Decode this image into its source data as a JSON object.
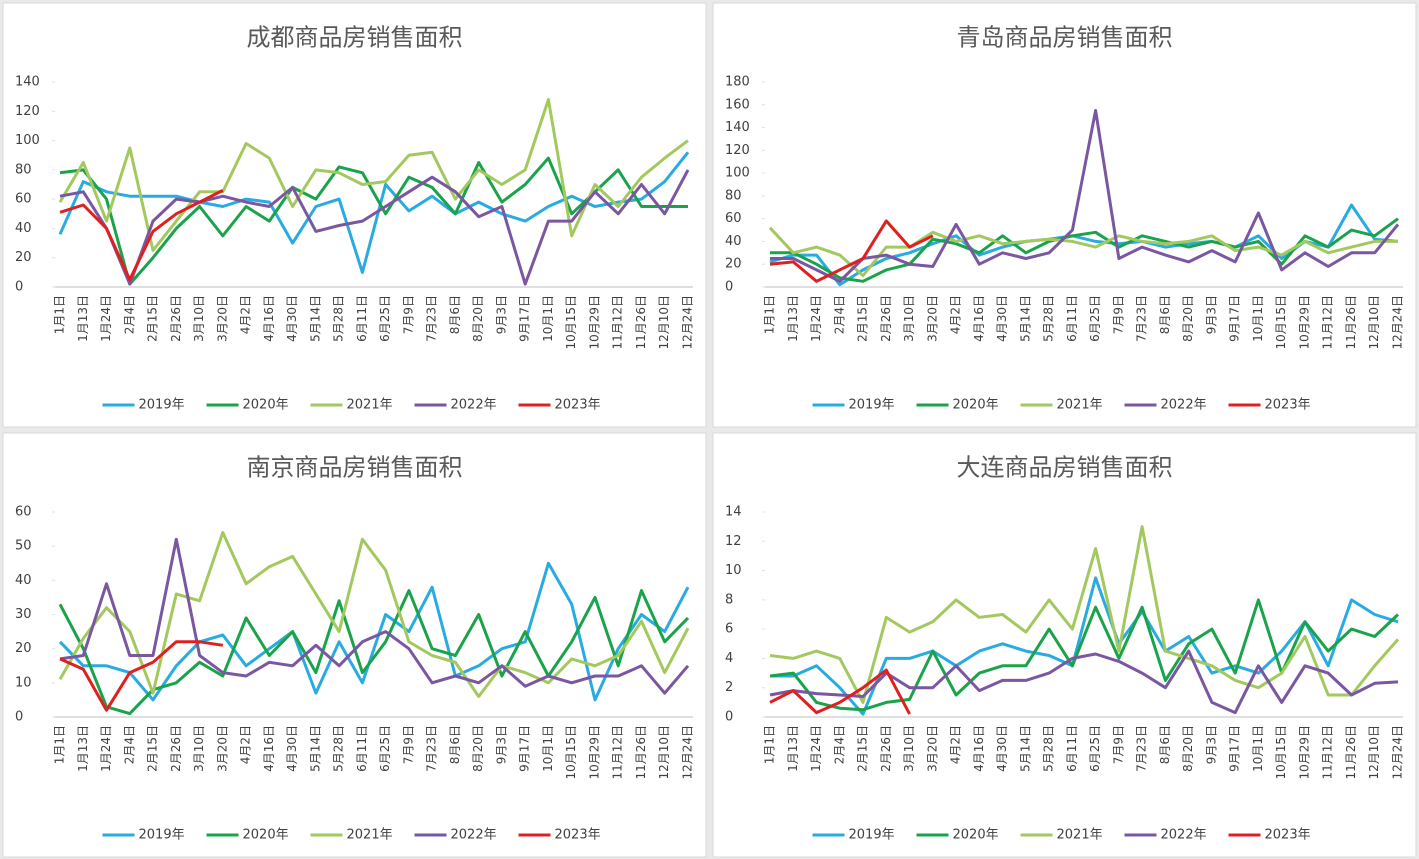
{
  "chart_data": [
    {
      "type": "line",
      "title": "成都商品房销售面积",
      "categories": [
        "1月1日",
        "1月13日",
        "1月24日",
        "2月4日",
        "2月15日",
        "2月26日",
        "3月10日",
        "3月20日",
        "4月2日",
        "4月16日",
        "4月30日",
        "5月14日",
        "5月28日",
        "6月11日",
        "6月25日",
        "7月9日",
        "7月23日",
        "8月6日",
        "8月20日",
        "9月3日",
        "9月17日",
        "10月1日",
        "10月15日",
        "10月29日",
        "11月12日",
        "11月26日",
        "12月10日",
        "12月24日"
      ],
      "ylim": [
        0,
        140
      ],
      "yticks": [
        0,
        20,
        40,
        60,
        80,
        100,
        120,
        140
      ],
      "grid": false,
      "legend": "bottom",
      "series": [
        {
          "name": "2019年",
          "color": "#29abe2",
          "values": [
            36,
            72,
            65,
            62,
            62,
            62,
            58,
            55,
            60,
            58,
            30,
            55,
            60,
            10,
            70,
            52,
            62,
            50,
            58,
            50,
            45,
            55,
            62,
            55,
            58,
            60,
            72,
            92
          ]
        },
        {
          "name": "2020年",
          "color": "#1aa34a",
          "values": [
            78,
            80,
            60,
            2,
            20,
            40,
            55,
            35,
            55,
            45,
            68,
            60,
            82,
            78,
            50,
            75,
            68,
            50,
            85,
            58,
            70,
            88,
            50,
            65,
            80,
            55,
            55,
            55
          ]
        },
        {
          "name": "2021年",
          "color": "#a3c95e",
          "values": [
            58,
            85,
            45,
            95,
            25,
            45,
            65,
            65,
            98,
            88,
            55,
            80,
            78,
            70,
            72,
            90,
            92,
            60,
            80,
            70,
            80,
            128,
            35,
            70,
            55,
            75,
            88,
            100
          ]
        },
        {
          "name": "2022年",
          "color": "#7a57a0",
          "values": [
            62,
            65,
            40,
            2,
            45,
            60,
            58,
            62,
            58,
            55,
            68,
            38,
            42,
            45,
            55,
            65,
            75,
            65,
            48,
            55,
            2,
            45,
            45,
            65,
            50,
            70,
            50,
            80
          ]
        },
        {
          "name": "2023年",
          "color": "#e02020",
          "values": [
            51,
            56,
            40,
            5,
            38,
            50,
            58,
            66,
            null,
            null,
            null,
            null,
            null,
            null,
            null,
            null,
            null,
            null,
            null,
            null,
            null,
            null,
            null,
            null,
            null,
            null,
            null,
            null
          ]
        }
      ]
    },
    {
      "type": "line",
      "title": "青岛商品房销售面积",
      "categories": [
        "1月1日",
        "1月13日",
        "1月24日",
        "2月4日",
        "2月15日",
        "2月26日",
        "3月10日",
        "3月20日",
        "4月2日",
        "4月16日",
        "4月30日",
        "5月14日",
        "5月28日",
        "6月11日",
        "6月25日",
        "7月9日",
        "7月23日",
        "8月6日",
        "8月20日",
        "9月3日",
        "9月17日",
        "10月1日",
        "10月15日",
        "10月29日",
        "11月12日",
        "11月26日",
        "12月10日",
        "12月24日"
      ],
      "ylim": [
        0,
        180
      ],
      "yticks": [
        0,
        20,
        40,
        60,
        80,
        100,
        120,
        140,
        160,
        180
      ],
      "grid": false,
      "legend": "bottom",
      "series": [
        {
          "name": "2019年",
          "color": "#29abe2",
          "values": [
            22,
            28,
            28,
            2,
            15,
            25,
            30,
            38,
            45,
            28,
            35,
            40,
            42,
            45,
            40,
            38,
            40,
            35,
            38,
            40,
            35,
            45,
            25,
            40,
            35,
            72,
            42,
            40
          ]
        },
        {
          "name": "2020年",
          "color": "#1aa34a",
          "values": [
            30,
            30,
            20,
            8,
            5,
            15,
            20,
            42,
            38,
            30,
            45,
            30,
            40,
            45,
            48,
            35,
            45,
            40,
            35,
            40,
            35,
            40,
            20,
            45,
            35,
            50,
            45,
            60
          ]
        },
        {
          "name": "2021年",
          "color": "#a3c95e",
          "values": [
            52,
            30,
            35,
            28,
            10,
            35,
            35,
            48,
            40,
            45,
            38,
            40,
            42,
            40,
            35,
            45,
            40,
            38,
            40,
            45,
            32,
            35,
            28,
            40,
            30,
            35,
            40,
            40
          ]
        },
        {
          "name": "2022年",
          "color": "#7a57a0",
          "values": [
            25,
            25,
            15,
            5,
            25,
            28,
            20,
            18,
            55,
            20,
            30,
            25,
            30,
            50,
            155,
            25,
            35,
            28,
            22,
            32,
            22,
            65,
            15,
            30,
            18,
            30,
            30,
            55
          ]
        },
        {
          "name": "2023年",
          "color": "#e02020",
          "values": [
            20,
            22,
            5,
            15,
            25,
            58,
            35,
            45,
            null,
            null,
            null,
            null,
            null,
            null,
            null,
            null,
            null,
            null,
            null,
            null,
            null,
            null,
            null,
            null,
            null,
            null,
            null,
            null
          ]
        }
      ]
    },
    {
      "type": "line",
      "title": "南京商品房销售面积",
      "categories": [
        "1月1日",
        "1月13日",
        "1月24日",
        "2月4日",
        "2月15日",
        "2月26日",
        "3月10日",
        "3月20日",
        "4月2日",
        "4月16日",
        "4月30日",
        "5月14日",
        "5月28日",
        "6月11日",
        "6月25日",
        "7月9日",
        "7月23日",
        "8月6日",
        "8月20日",
        "9月3日",
        "9月17日",
        "10月1日",
        "10月15日",
        "10月29日",
        "11月12日",
        "11月26日",
        "12月10日",
        "12月24日"
      ],
      "ylim": [
        0,
        60
      ],
      "yticks": [
        0,
        10,
        20,
        30,
        40,
        50,
        60
      ],
      "grid": false,
      "legend": "bottom",
      "series": [
        {
          "name": "2019年",
          "color": "#29abe2",
          "values": [
            22,
            15,
            15,
            13,
            5,
            15,
            22,
            24,
            15,
            20,
            25,
            7,
            22,
            10,
            30,
            25,
            38,
            12,
            15,
            20,
            22,
            45,
            33,
            5,
            20,
            30,
            25,
            38
          ]
        },
        {
          "name": "2020年",
          "color": "#1aa34a",
          "values": [
            33,
            20,
            3,
            1,
            8,
            10,
            16,
            12,
            29,
            18,
            25,
            13,
            34,
            13,
            22,
            37,
            20,
            18,
            30,
            12,
            25,
            12,
            22,
            35,
            15,
            37,
            22,
            29
          ]
        },
        {
          "name": "2021年",
          "color": "#a3c95e",
          "values": [
            11,
            23,
            32,
            25,
            7,
            36,
            34,
            54,
            39,
            44,
            47,
            36,
            25,
            52,
            43,
            22,
            18,
            16,
            6,
            15,
            13,
            10,
            17,
            15,
            18,
            28,
            13,
            26
          ]
        },
        {
          "name": "2022年",
          "color": "#7a57a0",
          "values": [
            17,
            18,
            39,
            18,
            18,
            52,
            18,
            13,
            12,
            16,
            15,
            21,
            15,
            22,
            25,
            20,
            10,
            12,
            10,
            15,
            9,
            12,
            10,
            12,
            12,
            15,
            7,
            15
          ]
        },
        {
          "name": "2023年",
          "color": "#e02020",
          "values": [
            17,
            14,
            2,
            13,
            16,
            22,
            22,
            21,
            null,
            null,
            null,
            null,
            null,
            null,
            null,
            null,
            null,
            null,
            null,
            null,
            null,
            null,
            null,
            null,
            null,
            null,
            null,
            null
          ]
        }
      ]
    },
    {
      "type": "line",
      "title": "大连商品房销售面积",
      "categories": [
        "1月1日",
        "1月13日",
        "1月24日",
        "2月4日",
        "2月15日",
        "2月26日",
        "3月10日",
        "3月20日",
        "4月2日",
        "4月16日",
        "4月30日",
        "5月14日",
        "5月28日",
        "6月11日",
        "6月25日",
        "7月9日",
        "7月23日",
        "8月6日",
        "8月20日",
        "9月3日",
        "9月17日",
        "10月1日",
        "10月15日",
        "10月29日",
        "11月12日",
        "11月26日",
        "12月10日",
        "12月24日"
      ],
      "ylim": [
        0,
        14
      ],
      "yticks": [
        0,
        2,
        4,
        6,
        8,
        10,
        12,
        14
      ],
      "grid": false,
      "legend": "bottom",
      "series": [
        {
          "name": "2019年",
          "color": "#29abe2",
          "values": [
            2.8,
            2.8,
            3.5,
            2.0,
            0.2,
            4.0,
            4.0,
            4.5,
            3.5,
            4.5,
            5.0,
            4.5,
            4.2,
            3.5,
            9.5,
            5.0,
            7.2,
            4.5,
            5.5,
            3.0,
            3.5,
            3.0,
            4.5,
            6.5,
            3.5,
            8.0,
            7.0,
            6.5
          ]
        },
        {
          "name": "2020年",
          "color": "#1aa34a",
          "values": [
            2.8,
            3.0,
            1.0,
            0.6,
            0.5,
            1.0,
            1.2,
            4.5,
            1.5,
            3.0,
            3.5,
            3.5,
            6.0,
            3.5,
            7.5,
            4.0,
            7.5,
            2.5,
            5.0,
            6.0,
            3.0,
            8.0,
            3.0,
            6.5,
            4.5,
            6.0,
            5.5,
            7.0
          ]
        },
        {
          "name": "2021年",
          "color": "#a3c95e",
          "values": [
            4.2,
            4.0,
            4.5,
            4.0,
            1.0,
            6.8,
            5.8,
            6.5,
            8.0,
            6.8,
            7.0,
            5.8,
            8.0,
            6.0,
            11.5,
            4.5,
            13.0,
            4.5,
            4.0,
            3.5,
            2.5,
            2.0,
            3.0,
            5.5,
            1.5,
            1.5,
            3.5,
            5.3
          ]
        },
        {
          "name": "2022年",
          "color": "#7a57a0",
          "values": [
            1.5,
            1.8,
            1.6,
            1.5,
            1.4,
            3.0,
            2.0,
            2.0,
            3.5,
            1.8,
            2.5,
            2.5,
            3.0,
            4.0,
            4.3,
            3.8,
            3.0,
            2.0,
            4.5,
            1.0,
            0.3,
            3.5,
            1.0,
            3.5,
            3.0,
            1.5,
            2.3,
            2.4
          ]
        },
        {
          "name": "2023年",
          "color": "#e02020",
          "values": [
            1.0,
            1.8,
            0.3,
            1.0,
            2.0,
            3.2,
            0.2,
            null,
            null,
            null,
            null,
            null,
            null,
            null,
            null,
            null,
            null,
            null,
            null,
            null,
            null,
            null,
            null,
            null,
            null,
            null,
            null,
            null
          ]
        }
      ]
    }
  ]
}
